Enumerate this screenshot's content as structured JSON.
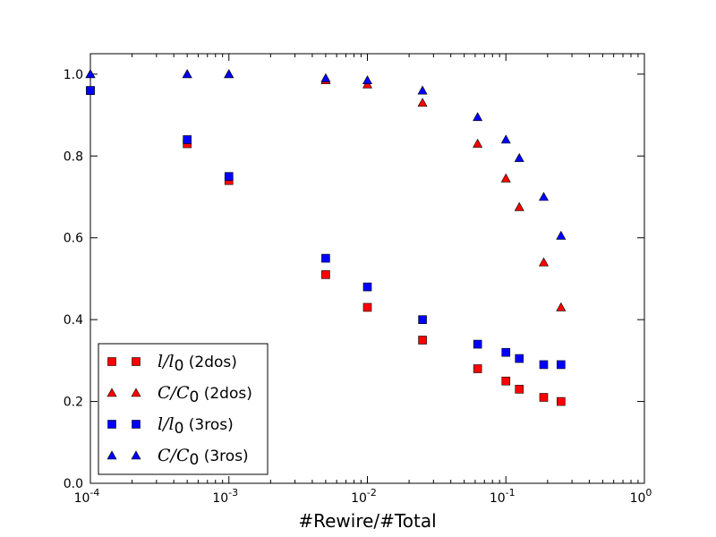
{
  "chart_data": {
    "type": "scatter",
    "xlabel": "#Rewire/#Total",
    "ylabel": "",
    "xscale": "log",
    "xlim": [
      0.0001,
      1
    ],
    "ylim": [
      0.0,
      1.05
    ],
    "grid": false,
    "legend_position": "lower-left",
    "x_ticks": [
      {
        "value": 0.0001,
        "base": "10",
        "exp": "-4"
      },
      {
        "value": 0.001,
        "base": "10",
        "exp": "-3"
      },
      {
        "value": 0.01,
        "base": "10",
        "exp": "-2"
      },
      {
        "value": 0.1,
        "base": "10",
        "exp": "-1"
      },
      {
        "value": 1,
        "base": "10",
        "exp": "0"
      }
    ],
    "y_ticks": [
      "0.0",
      "0.2",
      "0.4",
      "0.6",
      "0.8",
      "1.0"
    ],
    "series": [
      {
        "name_math": "l/l0",
        "name_suffix": "(2dos)",
        "marker": "square",
        "color": "#ff0000",
        "points": [
          [
            0.0001,
            0.96
          ],
          [
            0.0005,
            0.83
          ],
          [
            0.001,
            0.74
          ],
          [
            0.005,
            0.51
          ],
          [
            0.01,
            0.43
          ],
          [
            0.025,
            0.35
          ],
          [
            0.0625,
            0.28
          ],
          [
            0.1,
            0.25
          ],
          [
            0.125,
            0.23
          ],
          [
            0.1875,
            0.21
          ],
          [
            0.25,
            0.2
          ]
        ]
      },
      {
        "name_math": "C/C0",
        "name_suffix": "(2dos)",
        "marker": "triangle",
        "color": "#ff0000",
        "points": [
          [
            0.0001,
            1.0
          ],
          [
            0.0005,
            1.0
          ],
          [
            0.001,
            1.0
          ],
          [
            0.005,
            0.985
          ],
          [
            0.01,
            0.975
          ],
          [
            0.025,
            0.93
          ],
          [
            0.0625,
            0.83
          ],
          [
            0.1,
            0.745
          ],
          [
            0.125,
            0.675
          ],
          [
            0.1875,
            0.54
          ],
          [
            0.25,
            0.43
          ]
        ]
      },
      {
        "name_math": "l/l0",
        "name_suffix": "(3ros)",
        "marker": "square",
        "color": "#0000ff",
        "points": [
          [
            0.0001,
            0.96
          ],
          [
            0.0005,
            0.84
          ],
          [
            0.001,
            0.75
          ],
          [
            0.005,
            0.55
          ],
          [
            0.01,
            0.48
          ],
          [
            0.025,
            0.4
          ],
          [
            0.0625,
            0.34
          ],
          [
            0.1,
            0.32
          ],
          [
            0.125,
            0.305
          ],
          [
            0.1875,
            0.29
          ],
          [
            0.25,
            0.29
          ]
        ]
      },
      {
        "name_math": "C/C0",
        "name_suffix": "(3ros)",
        "marker": "triangle",
        "color": "#0000ff",
        "points": [
          [
            0.0001,
            1.0
          ],
          [
            0.0005,
            1.0
          ],
          [
            0.001,
            1.0
          ],
          [
            0.005,
            0.99
          ],
          [
            0.01,
            0.985
          ],
          [
            0.025,
            0.96
          ],
          [
            0.0625,
            0.895
          ],
          [
            0.1,
            0.84
          ],
          [
            0.125,
            0.795
          ],
          [
            0.1875,
            0.7
          ],
          [
            0.25,
            0.605
          ]
        ]
      }
    ]
  }
}
